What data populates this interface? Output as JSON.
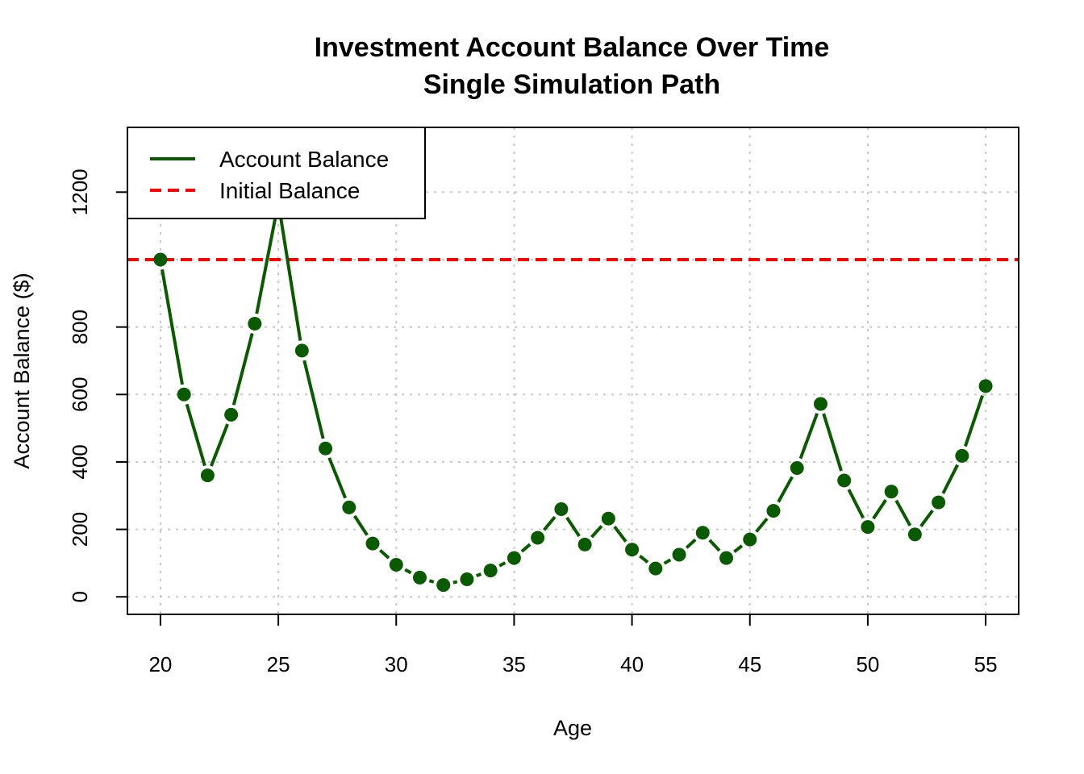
{
  "chart_data": {
    "type": "line",
    "title": "Investment Account Balance Over Time",
    "subtitle": "Single Simulation Path",
    "xlabel": "Age",
    "ylabel": "Account Balance ($)",
    "xlim": [
      18.6,
      56.4
    ],
    "ylim": [
      -52,
      1392
    ],
    "x_ticks": [
      20,
      25,
      30,
      35,
      40,
      45,
      50,
      55
    ],
    "y_ticks": [
      0,
      200,
      400,
      600,
      800,
      1200
    ],
    "grid_x": [
      20,
      25,
      30,
      35,
      40,
      45,
      50,
      55
    ],
    "grid_y": [
      0,
      200,
      400,
      600,
      800,
      1000,
      1200
    ],
    "grid": true,
    "legend_position": "top-left",
    "series": [
      {
        "name": "Account Balance",
        "color": "#0a5a00",
        "x": [
          20,
          21,
          22,
          23,
          24,
          25,
          26,
          27,
          28,
          29,
          30,
          31,
          32,
          33,
          34,
          35,
          36,
          37,
          38,
          39,
          40,
          41,
          42,
          43,
          44,
          45,
          46,
          47,
          48,
          49,
          50,
          51,
          52,
          53,
          54,
          55
        ],
        "values": [
          1000,
          600,
          360,
          540,
          810,
          1170,
          730,
          440,
          265,
          158,
          95,
          57,
          35,
          52,
          78,
          115,
          175,
          260,
          155,
          232,
          140,
          84,
          125,
          190,
          115,
          170,
          255,
          382,
          572,
          345,
          207,
          312,
          185,
          280,
          418,
          625
        ]
      },
      {
        "name": "Initial Balance",
        "type": "hline",
        "color": "#ff0000",
        "dash": "dashed",
        "y": 1000
      }
    ]
  }
}
